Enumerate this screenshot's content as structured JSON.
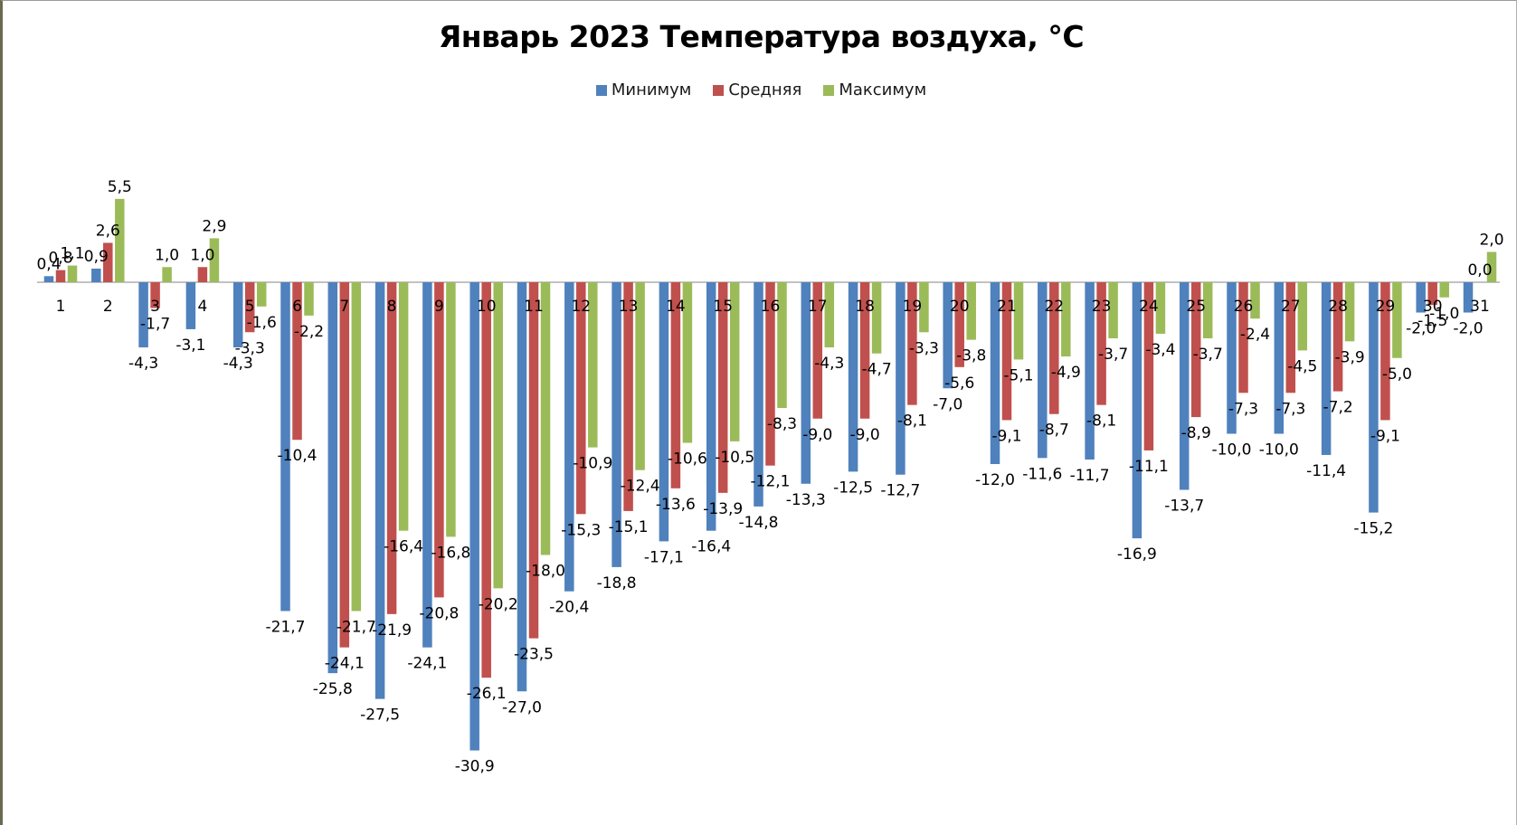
{
  "colors": {
    "min": "#4f81bd",
    "avg": "#c0504d",
    "max": "#9bbb59",
    "axis": "#868686",
    "text": "#000000"
  },
  "chart_data": {
    "type": "bar",
    "title": "Январь 2023 Температура воздуха, °С",
    "xlabel": "",
    "ylabel": "",
    "grid": false,
    "legend_position": "top",
    "ylim": [
      -32,
      10
    ],
    "categories": [
      "1",
      "2",
      "3",
      "4",
      "5",
      "6",
      "7",
      "8",
      "9",
      "10",
      "11",
      "12",
      "13",
      "14",
      "15",
      "16",
      "17",
      "18",
      "19",
      "20",
      "21",
      "22",
      "23",
      "24",
      "25",
      "26",
      "27",
      "28",
      "29",
      "30",
      "31"
    ],
    "series": [
      {
        "name": "Минимум",
        "color_key": "min",
        "values": [
          0.4,
          0.9,
          -4.3,
          -3.1,
          -4.3,
          -21.7,
          -25.8,
          -27.5,
          -24.1,
          -30.9,
          -27.0,
          -20.4,
          -18.8,
          -17.1,
          -16.4,
          -14.8,
          -13.3,
          -12.5,
          -12.7,
          -7.0,
          -12.0,
          -11.6,
          -11.7,
          -16.9,
          -13.7,
          -10.0,
          -10.0,
          -11.4,
          -15.2,
          -2.0,
          -2.0
        ],
        "labels": [
          "0,4",
          "0,9",
          "-4,3",
          "-3,1",
          "-4,3",
          "-21,7",
          "-25,8",
          "-27,5",
          "-24,1",
          "-30,9",
          "-27,0",
          "-20,4",
          "-18,8",
          "-17,1",
          "-16,4",
          "-14,8",
          "-13,3",
          "-12,5",
          "-12,7",
          "-7,0",
          "-12,0",
          "-11,6",
          "-11,7",
          "-16,9",
          "-13,7",
          "-10,0",
          "-10,0",
          "-11,4",
          "-15,2",
          "-2,0",
          "-2,0"
        ]
      },
      {
        "name": "Средняя",
        "color_key": "avg",
        "values": [
          0.8,
          2.6,
          -1.7,
          1.0,
          -3.3,
          -10.4,
          -24.1,
          -21.9,
          -20.8,
          -26.1,
          -23.5,
          -15.3,
          -15.1,
          -13.6,
          -13.9,
          -12.1,
          -9.0,
          -9.0,
          -8.1,
          -5.6,
          -9.1,
          -8.7,
          -8.1,
          -11.1,
          -8.9,
          -7.3,
          -7.3,
          -7.2,
          -9.1,
          -1.5,
          0.0
        ],
        "labels": [
          "0,8",
          "2,6",
          "-1,7",
          "1,0",
          "-3,3",
          "-10,4",
          "-24,1",
          "-21,9",
          "-20,8",
          "-26,1",
          "-23,5",
          "-15,3",
          "-15,1",
          "-13,6",
          "-13,9",
          "-12,1",
          "-9,0",
          "-9,0",
          "-8,1",
          "-5,6",
          "-9,1",
          "-8,7",
          "-8,1",
          "-11,1",
          "-8,9",
          "-7,3",
          "-7,3",
          "-7,2",
          "-9,1",
          "-1,5",
          "0,0"
        ]
      },
      {
        "name": "Максимум",
        "color_key": "max",
        "values": [
          1.1,
          5.5,
          1.0,
          2.9,
          -1.6,
          -2.2,
          -21.7,
          -16.4,
          -16.8,
          -20.2,
          -18.0,
          -10.9,
          -12.4,
          -10.6,
          -10.5,
          -8.3,
          -4.3,
          -4.7,
          -3.3,
          -3.8,
          -5.1,
          -4.9,
          -3.7,
          -3.4,
          -3.7,
          -2.4,
          -4.5,
          -3.9,
          -5.0,
          -1.0,
          2.0
        ],
        "labels": [
          "1,1",
          "5,5",
          "1,0",
          "2,9",
          "-1,6",
          "-2,2",
          "-21,7",
          "-16,4",
          "-16,8",
          "-20,2",
          "-18,0",
          "-10,9",
          "-12,4",
          "-10,6",
          "-10,5",
          "-8,3",
          "-4,3",
          "-4,7",
          "-3,3",
          "-3,8",
          "-5,1",
          "-4,9",
          "-3,7",
          "-3,4",
          "-3,7",
          "-2,4",
          "-4,5",
          "-3,9",
          "-5,0",
          "-1,0",
          "2,0"
        ]
      }
    ]
  }
}
